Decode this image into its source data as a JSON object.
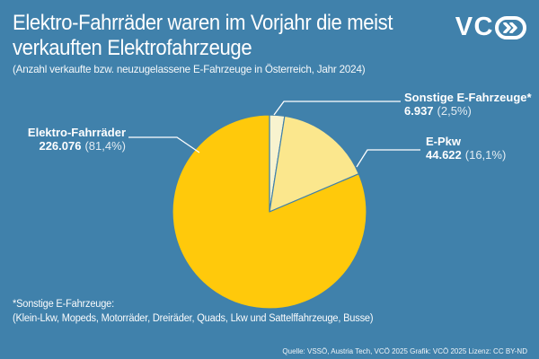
{
  "header": {
    "title_line1": "Elektro-Fahrräder waren im Vorjahr die meist",
    "title_line2": "verkauften Elektrofahrzeuge",
    "subtitle": "(Anzahl verkaufte bzw. neuzugelassene E-Fahrzeuge in Österreich, Jahr 2024)"
  },
  "logo": {
    "text": "VC",
    "symbol": "double-chevron-pill"
  },
  "chart_data": {
    "type": "pie",
    "title": "Anzahl verkaufte bzw. neuzugelassene E-Fahrzeuge in Österreich, Jahr 2024",
    "start_angle_deg": 0,
    "direction": "clockwise",
    "legend_position": "callouts",
    "slices": [
      {
        "label": "Sonstige E-Fahrzeuge*",
        "value": 6937,
        "value_text": "6.937",
        "pct": 2.5,
        "pct_text": "(2,5%)",
        "color": "#F8F3CF"
      },
      {
        "label": "E-Pkw",
        "value": 44622,
        "value_text": "44.622",
        "pct": 16.1,
        "pct_text": "(16,1%)",
        "color": "#FBE78D"
      },
      {
        "label": "Elektro-Fahrräder",
        "value": 226076,
        "value_text": "226.076",
        "pct": 81.4,
        "pct_text": "(81,4%)",
        "color": "#FFC90B"
      }
    ]
  },
  "footnote": {
    "line1": "*Sonstige E-Fahrzeuge:",
    "line2": "(Klein-Lkw, Mopeds, Motorräder, Dreiräder, Quads, Lkw und Sattelffahrzeuge, Busse)"
  },
  "source": "Quelle: VSSÖ, Austria Tech, VCÖ 2025 Grafik: VCÖ 2025 Lizenz: CC BY-ND",
  "colors": {
    "background": "#4081AB",
    "main_slice": "#FFC90B",
    "epkw_slice": "#FBE78D",
    "sonstige_slice": "#F8F3CF",
    "text": "#FFFFFF"
  }
}
